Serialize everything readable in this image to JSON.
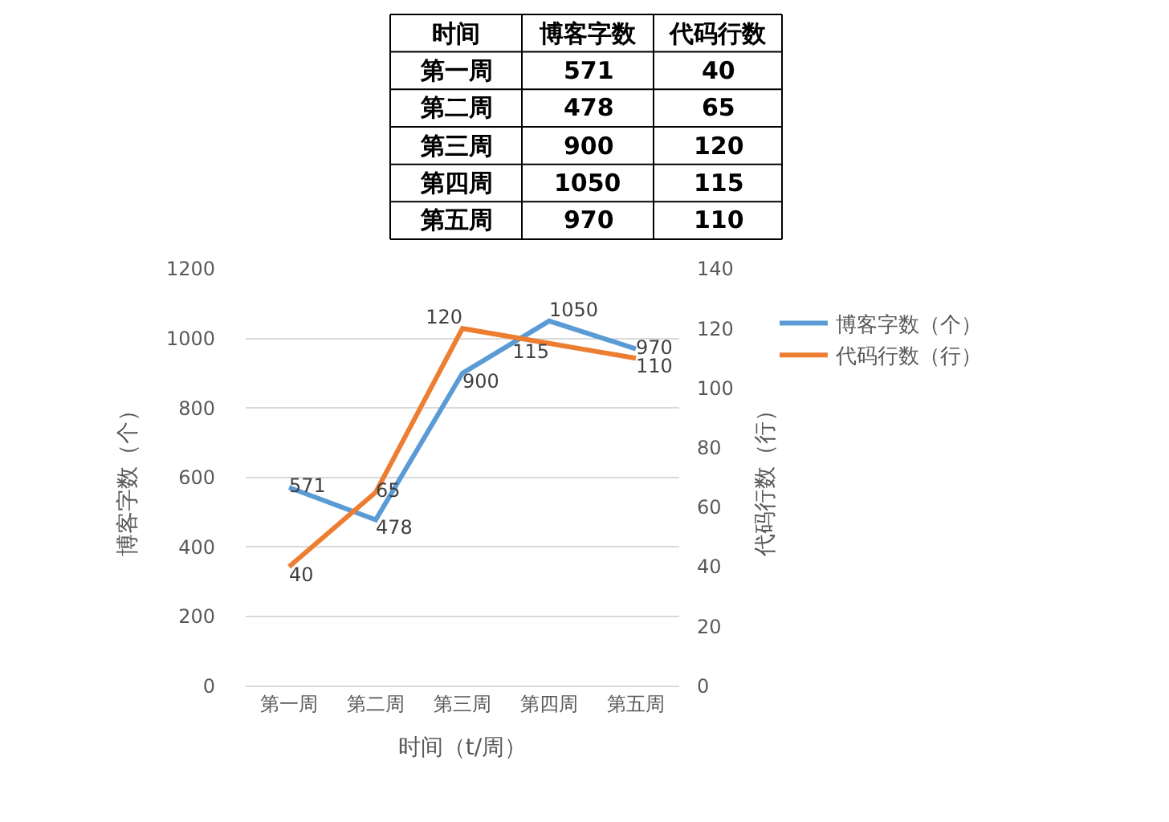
{
  "chart_data": [
    {
      "type": "other",
      "annotations": [
        "时间",
        "博客字数",
        "代码行数"
      ],
      "categories": [
        "第一周",
        "第二周",
        "第三周",
        "第四周",
        "第五周"
      ],
      "data_labels": true,
      "series": [
        {
          "values": [
            571,
            478,
            900,
            1050,
            970
          ],
          "value_labels": [
            "571",
            "478",
            "900",
            "1050",
            "970"
          ]
        },
        {
          "values": [
            40,
            65,
            120,
            115,
            110
          ],
          "value_labels": [
            "40",
            "65",
            "120",
            "115",
            "110"
          ]
        }
      ]
    },
    {
      "type": "line",
      "xlabel": "时间（t/周）",
      "ylabel": "博客字数（个）",
      "y2label": "代码行数（行）",
      "categories": [
        "第一周",
        "第二周",
        "第三周",
        "第四周",
        "第五周"
      ],
      "series": [
        {
          "name": "博客字数（个）",
          "color": "#5b9bd5",
          "values": [
            571,
            478,
            900,
            1050,
            970
          ]
        },
        {
          "name": "代码行数（行）",
          "color": "#ed7d31",
          "values": [
            40,
            65,
            120,
            115,
            110
          ],
          "axis": "y2"
        }
      ],
      "ylim": [
        0,
        1200
      ],
      "yticks": [
        0,
        200,
        400,
        600,
        800,
        1000,
        1200
      ],
      "y2lim": [
        0,
        140
      ],
      "y2ticks": [
        0,
        20,
        40,
        60,
        80,
        100,
        120,
        140
      ],
      "grid": "y",
      "legend": "top right",
      "marker": "none",
      "line_style": "solid",
      "data_labels": true
    }
  ]
}
